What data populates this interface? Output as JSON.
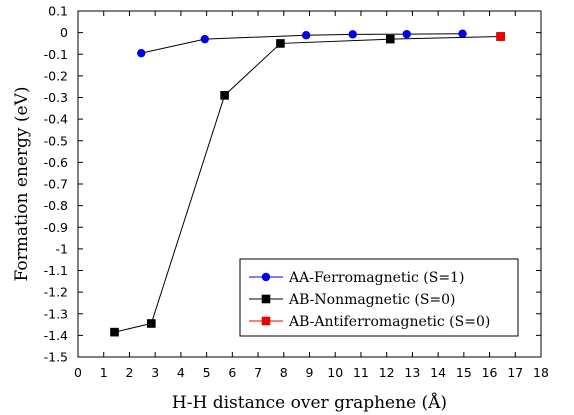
{
  "chart_data": {
    "type": "line",
    "xlabel": "H-H distance over graphene (Å)",
    "ylabel": "Formation energy (eV)",
    "xlim": [
      0,
      18
    ],
    "ylim": [
      -1.5,
      0.1
    ],
    "xticks": [
      "0",
      "1",
      "2",
      "3",
      "4",
      "5",
      "6",
      "7",
      "8",
      "9",
      "10",
      "11",
      "12",
      "13",
      "14",
      "15",
      "16",
      "17",
      "18"
    ],
    "yticks": [
      "0.1",
      "0",
      "-0.1",
      "-0.2",
      "-0.3",
      "-0.4",
      "-0.5",
      "-0.6",
      "-0.7",
      "-0.8",
      "-0.9",
      "-1",
      "-1.1",
      "-1.2",
      "-1.3",
      "-1.4",
      "-1.5"
    ],
    "grid": false,
    "legend_position": "bottom-right",
    "series": [
      {
        "name": "AA-Ferromagnetic (S=1)",
        "color": "#0000ee",
        "marker": "circle",
        "line": true,
        "x": [
          2.46,
          4.93,
          8.87,
          10.68,
          12.78,
          14.95
        ],
        "y": [
          -0.095,
          -0.03,
          -0.012,
          -0.008,
          -0.007,
          -0.005
        ]
      },
      {
        "name": "AB-Nonmagnetic (S=0)",
        "color": "#000000",
        "marker": "square",
        "line": true,
        "x": [
          1.42,
          2.85,
          5.7,
          7.87,
          12.14,
          16.43
        ],
        "y": [
          -1.385,
          -1.345,
          -0.29,
          -0.05,
          -0.03,
          -0.018
        ]
      },
      {
        "name": "AB-Antiferromagnetic (S=0)",
        "color": "#ee0000",
        "marker": "square",
        "line": false,
        "x": [
          16.43
        ],
        "y": [
          -0.018
        ]
      }
    ]
  }
}
